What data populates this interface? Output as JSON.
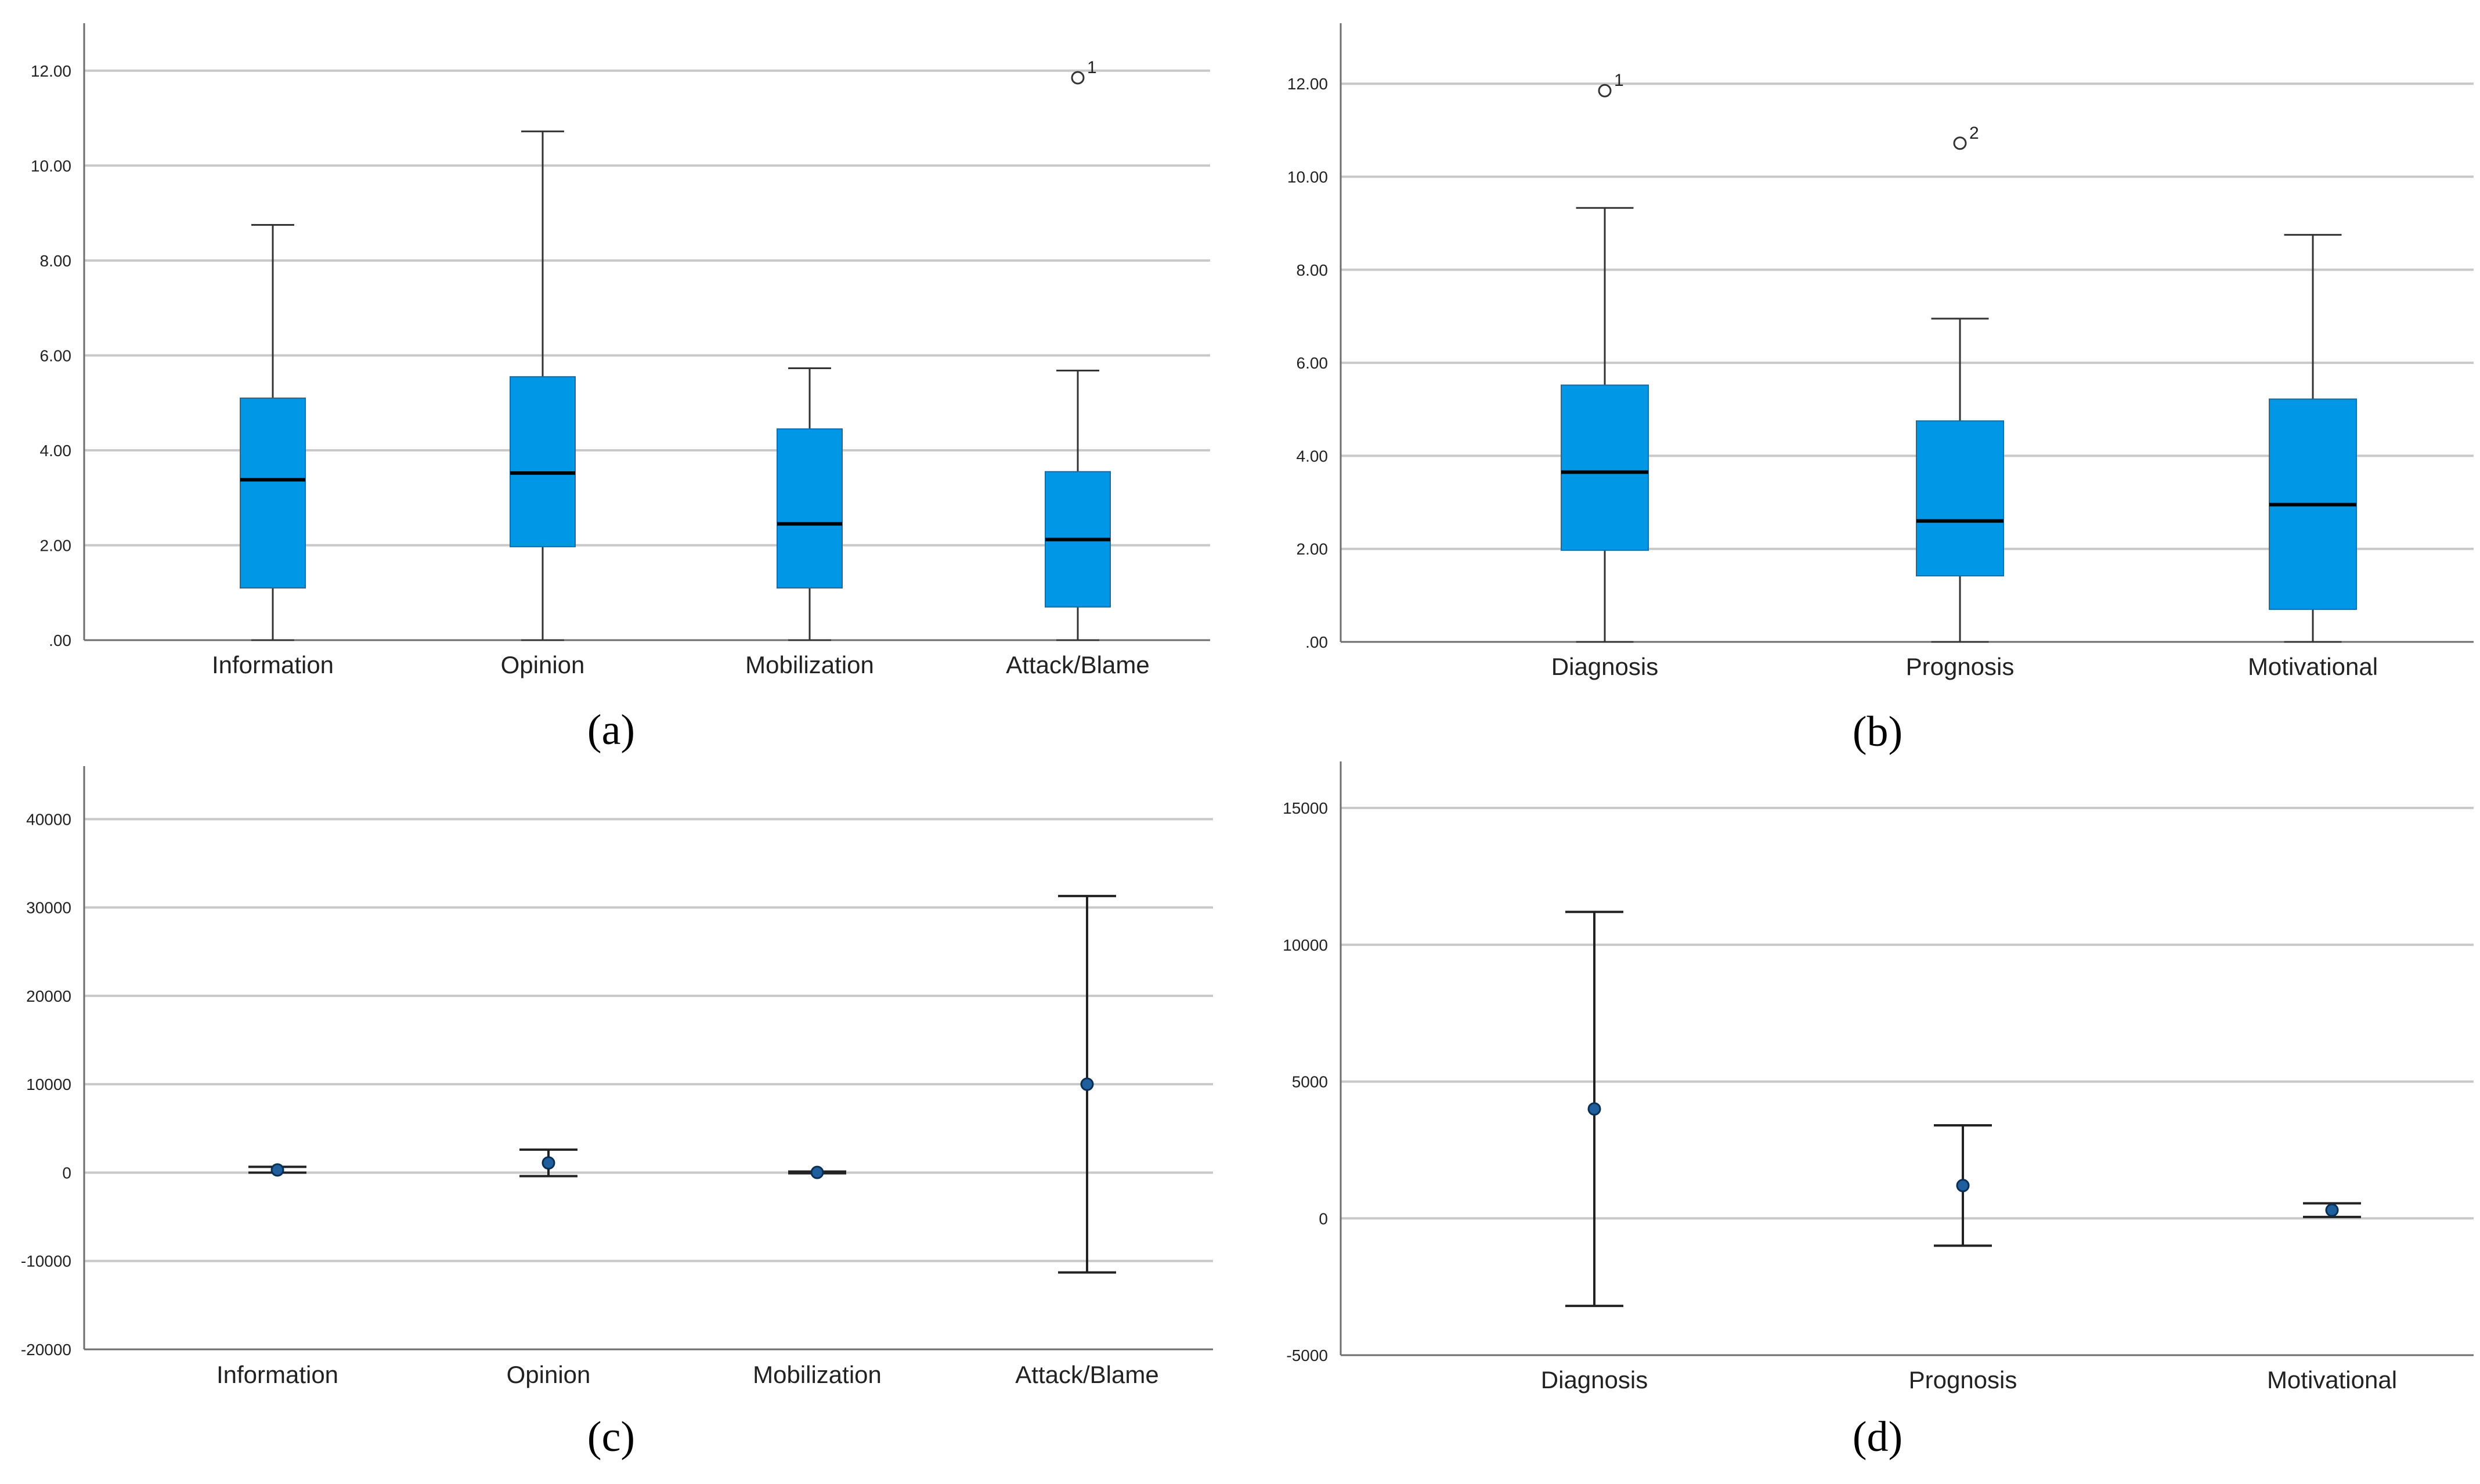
{
  "chart_data": [
    {
      "id": "a",
      "type": "box",
      "caption": "(a)",
      "box_color": "#0097e6",
      "categories": [
        "Information",
        "Opinion",
        "Mobilization",
        "Attack/Blame"
      ],
      "ylim": [
        0,
        13
      ],
      "yticks": [
        0,
        2,
        4,
        6,
        8,
        10,
        12
      ],
      "ytick_labels": [
        ".00",
        "2.00",
        "4.00",
        "6.00",
        "8.00",
        "10.00",
        "12.00"
      ],
      "boxes": [
        {
          "min": 0,
          "q1": 1.1,
          "median": 3.38,
          "q3": 5.1,
          "max": 8.75,
          "outliers": []
        },
        {
          "min": 0,
          "q1": 1.97,
          "median": 3.52,
          "q3": 5.55,
          "max": 10.72,
          "outliers": []
        },
        {
          "min": 0,
          "q1": 1.1,
          "median": 2.45,
          "q3": 4.45,
          "max": 5.73,
          "outliers": []
        },
        {
          "min": 0,
          "q1": 0.7,
          "median": 2.12,
          "q3": 3.55,
          "max": 5.68,
          "outliers": [
            {
              "value": 11.85,
              "label": "1"
            }
          ]
        }
      ]
    },
    {
      "id": "b",
      "type": "box",
      "caption": "(b)",
      "box_color": "#0097e6",
      "categories": [
        "Diagnosis",
        "Prognosis",
        "Motivational"
      ],
      "ylim": [
        0,
        13.3
      ],
      "yticks": [
        0,
        2,
        4,
        6,
        8,
        10,
        12
      ],
      "ytick_labels": [
        ".00",
        "2.00",
        "4.00",
        "6.00",
        "8.00",
        "10.00",
        "12.00"
      ],
      "boxes": [
        {
          "min": 0,
          "q1": 1.97,
          "median": 3.65,
          "q3": 5.52,
          "max": 9.33,
          "outliers": [
            {
              "value": 11.85,
              "label": "1"
            }
          ]
        },
        {
          "min": 0,
          "q1": 1.42,
          "median": 2.6,
          "q3": 4.75,
          "max": 6.95,
          "outliers": [
            {
              "value": 10.72,
              "label": "2"
            }
          ]
        },
        {
          "min": 0,
          "q1": 0.7,
          "median": 2.95,
          "q3": 5.22,
          "max": 8.75,
          "outliers": []
        }
      ]
    },
    {
      "id": "c",
      "type": "errorbar",
      "caption": "(c)",
      "point_color": "#1f5f9e",
      "categories": [
        "Information",
        "Opinion",
        "Mobilization",
        "Attack/Blame"
      ],
      "ylim": [
        -20000,
        46000
      ],
      "yticks": [
        -20000,
        -10000,
        0,
        10000,
        20000,
        30000,
        40000
      ],
      "ytick_labels": [
        "-20000",
        "-10000",
        "0",
        "10000",
        "20000",
        "30000",
        "40000"
      ],
      "points": [
        {
          "mean": 300,
          "lower": 0,
          "upper": 650
        },
        {
          "mean": 1100,
          "lower": -400,
          "upper": 2600
        },
        {
          "mean": 20,
          "lower": -80,
          "upper": 120
        },
        {
          "mean": 10000,
          "lower": -11300,
          "upper": 31300
        }
      ]
    },
    {
      "id": "d",
      "type": "errorbar",
      "caption": "(d)",
      "point_color": "#1f5f9e",
      "categories": [
        "Diagnosis",
        "Prognosis",
        "Motivational"
      ],
      "ylim": [
        -5000,
        16700
      ],
      "yticks": [
        -5000,
        0,
        5000,
        10000,
        15000
      ],
      "ytick_labels": [
        "-5000",
        "0",
        "5000",
        "10000",
        "15000"
      ],
      "points": [
        {
          "mean": 4000,
          "lower": -3200,
          "upper": 11200
        },
        {
          "mean": 1200,
          "lower": -1000,
          "upper": 3400
        },
        {
          "mean": 300,
          "lower": 50,
          "upper": 550
        }
      ]
    }
  ]
}
